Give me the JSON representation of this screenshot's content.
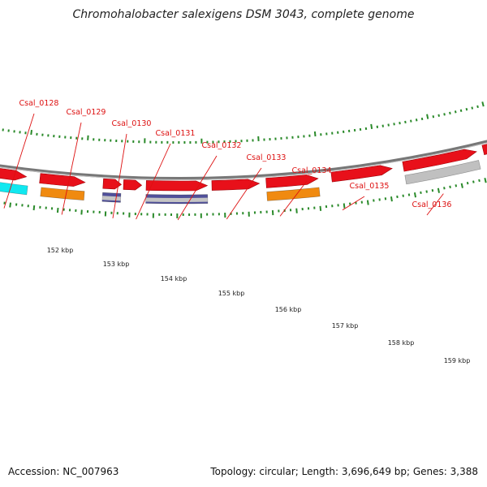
{
  "title": "Chromohalobacter salexigens DSM 3043, complete genome",
  "footer": {
    "accession": "Accession: NC_007963",
    "summary": "Topology: circular; Length: 3,696,649 bp; Genes: 3,388"
  },
  "colors": {
    "gene_forward": "#e8101a",
    "cds_gray": "#c0c0c0",
    "cds_orange": "#f08a10",
    "cds_cyan": "#10e8f0",
    "cds_purple": "#50509a",
    "backbone": "#777777",
    "ticks": "#2a8a2a",
    "label": "#dd1111"
  },
  "genes": [
    {
      "locus": "Csal_0128",
      "feature_color": "cds_cyan"
    },
    {
      "locus": "Csal_0129",
      "feature_color": "cds_orange"
    },
    {
      "locus": "Csal_0130",
      "feature_color": "cds_purple"
    },
    {
      "locus": "Csal_0131",
      "feature_color": "none"
    },
    {
      "locus": "Csal_0132",
      "feature_color": "cds_purple"
    },
    {
      "locus": "Csal_0133",
      "feature_color": "none"
    },
    {
      "locus": "Csal_0134",
      "feature_color": "cds_orange"
    },
    {
      "locus": "Csal_0135",
      "feature_color": "none"
    },
    {
      "locus": "Csal_0136",
      "feature_color": "cds_gray"
    }
  ],
  "kbp_labels": [
    "152 kbp",
    "153 kbp",
    "154 kbp",
    "155 kbp",
    "156 kbp",
    "157 kbp",
    "158 kbp",
    "159 kbp"
  ]
}
